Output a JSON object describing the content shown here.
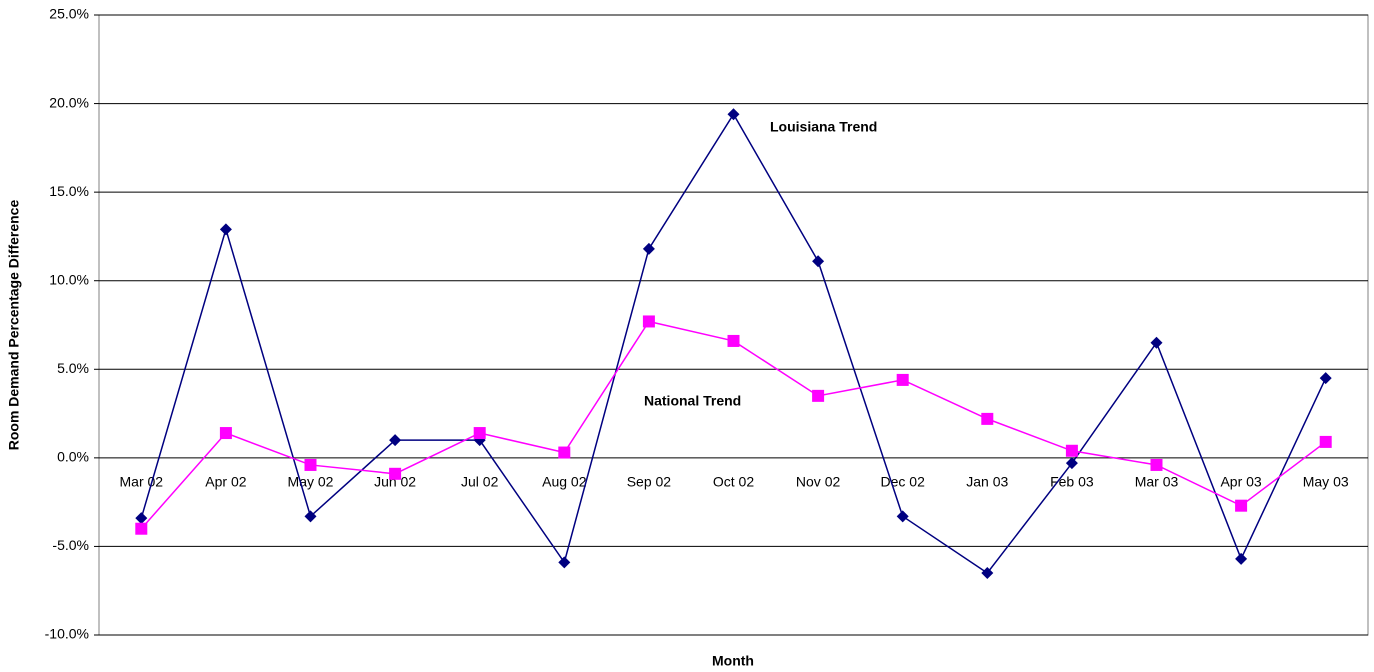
{
  "chart_data": {
    "type": "line",
    "x_label": "Month",
    "y_label": "Room Demand Percentage Difference",
    "categories": [
      "Mar 02",
      "Apr 02",
      "May 02",
      "Jun 02",
      "Jul 02",
      "Aug 02",
      "Sep 02",
      "Oct 02",
      "Nov 02",
      "Dec 02",
      "Jan 03",
      "Feb 03",
      "Mar 03",
      "Apr 03",
      "May 03"
    ],
    "series": [
      {
        "name": "Louisiana Trend",
        "color": "#000080",
        "marker": "diamond",
        "values": [
          -3.4,
          12.9,
          -3.3,
          1.0,
          1.0,
          -5.9,
          11.8,
          19.4,
          11.1,
          -3.3,
          -6.5,
          -0.3,
          6.5,
          -5.7,
          4.5
        ]
      },
      {
        "name": "National Trend",
        "color": "#ff00ff",
        "marker": "square",
        "values": [
          -4.0,
          1.4,
          -0.4,
          -0.9,
          1.4,
          0.3,
          7.7,
          6.6,
          3.5,
          4.4,
          2.2,
          0.4,
          -0.4,
          -2.7,
          0.9
        ]
      }
    ],
    "ylim": [
      -10,
      25
    ],
    "yticks": [
      {
        "value": -10,
        "label": "-10.0%"
      },
      {
        "value": -5,
        "label": "-5.0%"
      },
      {
        "value": 0,
        "label": "0.0%"
      },
      {
        "value": 5,
        "label": "5.0%"
      },
      {
        "value": 10,
        "label": "10.0%"
      },
      {
        "value": 15,
        "label": "15.0%"
      },
      {
        "value": 20,
        "label": "20.0%"
      },
      {
        "value": 25,
        "label": "25.0%"
      }
    ],
    "grid": true
  }
}
